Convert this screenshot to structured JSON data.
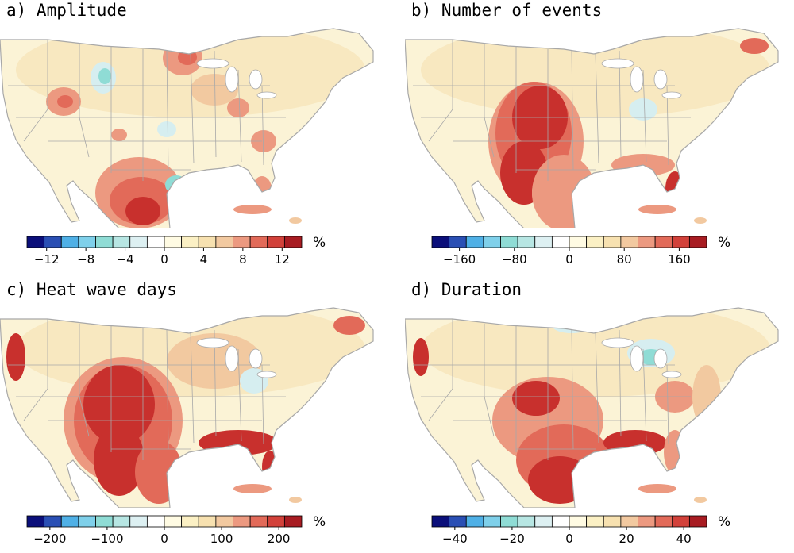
{
  "panels": [
    {
      "id": "a",
      "title": "a) Amplitude",
      "unit": "%",
      "ticks": [
        "−12",
        "−8",
        "−4",
        "0",
        "4",
        "8",
        "12"
      ],
      "tick_values": [
        -12,
        -8,
        -4,
        0,
        4,
        8,
        12
      ],
      "range": [
        -14,
        14
      ]
    },
    {
      "id": "b",
      "title": "b) Number of events",
      "unit": "%",
      "ticks": [
        "−160",
        "−80",
        "0",
        "80",
        "160"
      ],
      "tick_values": [
        -160,
        -80,
        0,
        80,
        160
      ],
      "range": [
        -200,
        200
      ]
    },
    {
      "id": "c",
      "title": "c) Heat wave days",
      "unit": "%",
      "ticks": [
        "−200",
        "−100",
        "0",
        "100",
        "200"
      ],
      "tick_values": [
        -200,
        -100,
        0,
        100,
        200
      ],
      "range": [
        -240,
        240
      ]
    },
    {
      "id": "d",
      "title": "d) Duration",
      "unit": "%",
      "ticks": [
        "−40",
        "−20",
        "0",
        "20",
        "40"
      ],
      "tick_values": [
        -40,
        -20,
        0,
        20,
        40
      ],
      "range": [
        -48,
        48
      ]
    }
  ],
  "colorbar_colors": [
    "#0b0f7a",
    "#2a4fb4",
    "#4fb0e6",
    "#7fd0ea",
    "#8fdcd5",
    "#b7e6e3",
    "#ddf0f2",
    "#ffffff",
    "#fffbe3",
    "#fbf0c4",
    "#f7e1b0",
    "#f2c9a0",
    "#ec9980",
    "#e26a59",
    "#d2413a",
    "#a81c22"
  ],
  "map_colors": {
    "ocean": "#ffffff",
    "land_neutral": "#fbf3d6",
    "land_light": "#f8e8c0",
    "warm1": "#f2c9a0",
    "warm2": "#ec9980",
    "warm3": "#e26a59",
    "warm4": "#c8302d",
    "cool1": "#d6eef0",
    "cool2": "#8fdcd5",
    "cool3": "#3d7fd0",
    "border": "#a8a8a8"
  }
}
